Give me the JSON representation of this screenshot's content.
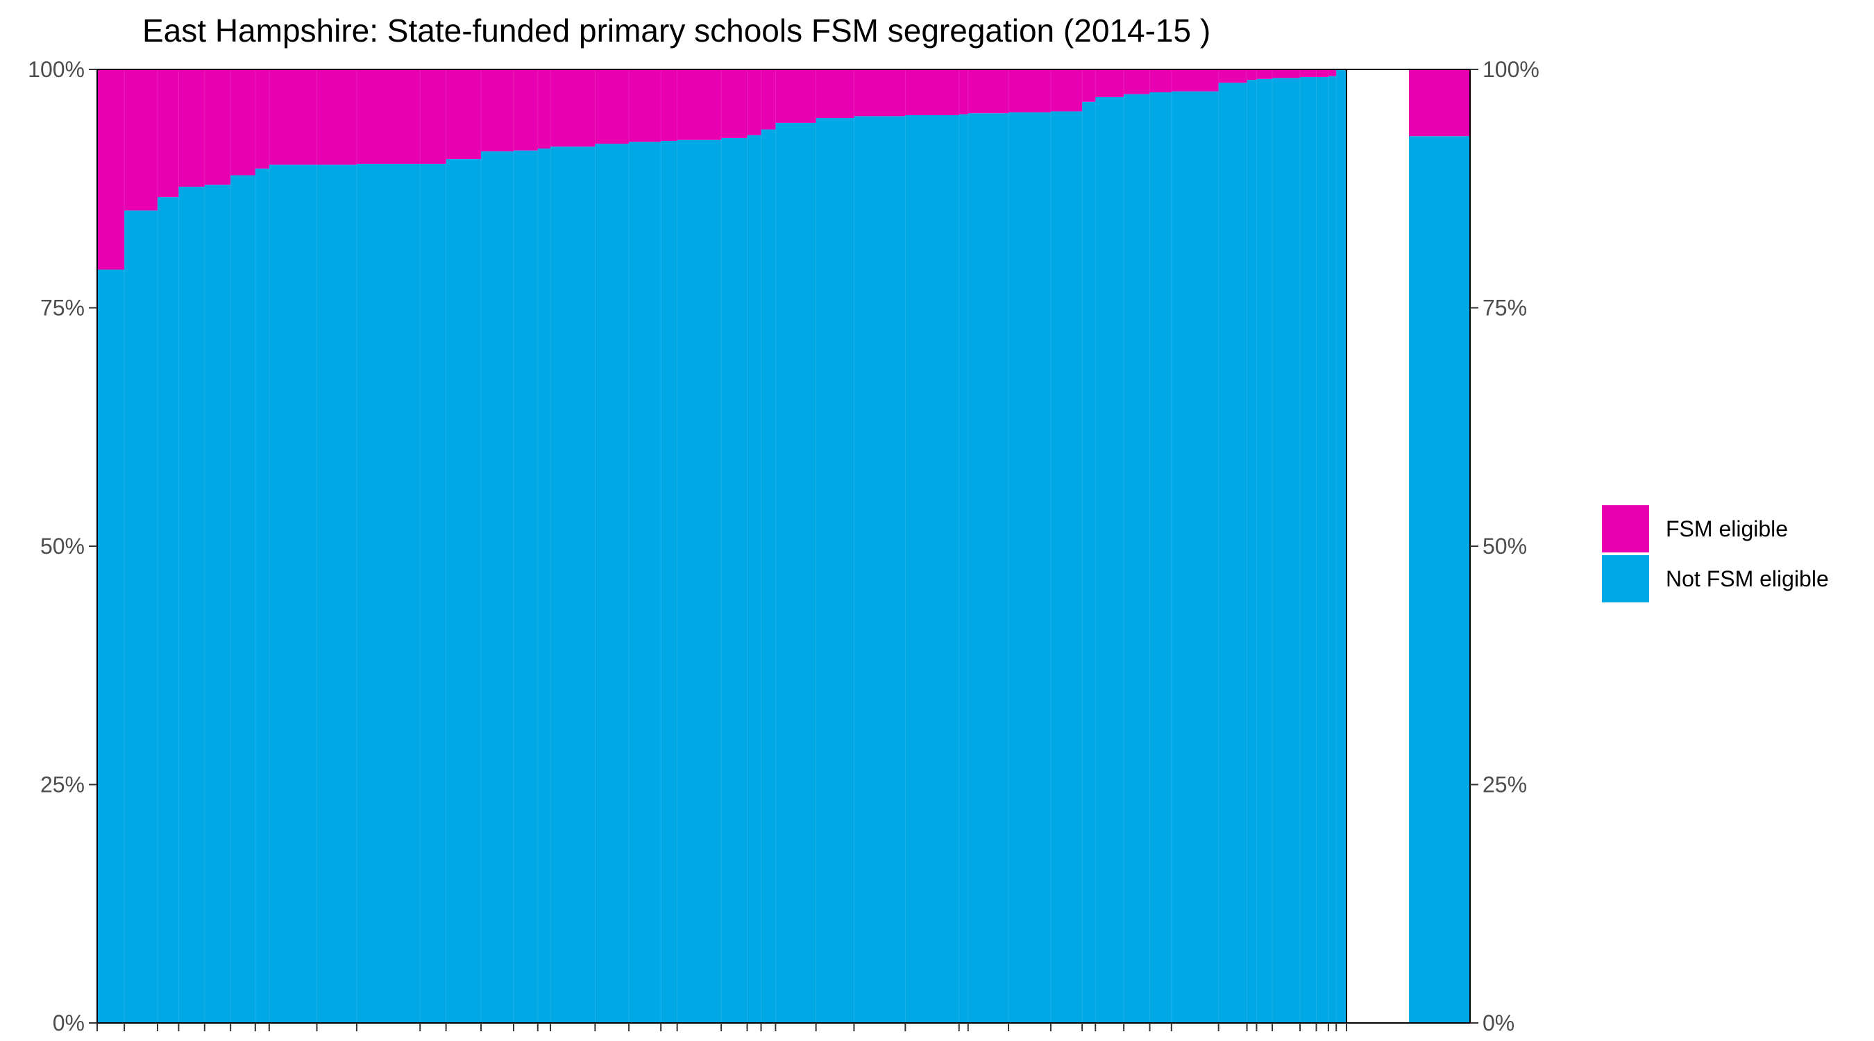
{
  "chart_data": {
    "type": "bar",
    "stacked": true,
    "variable_width": true,
    "title": "East Hampshire: State-funded primary schools FSM segregation (2014-15 )",
    "xlabel": "",
    "ylabel": "",
    "ylim": [
      0,
      1
    ],
    "yticks": [
      "0%",
      "25%",
      "50%",
      "75%",
      "100%"
    ],
    "yticks_right": [
      "0%",
      "25%",
      "50%",
      "75%",
      "100%"
    ],
    "grid": false,
    "legend": {
      "position": "right",
      "entries": [
        "FSM eligible",
        "Not FSM eligible"
      ]
    },
    "colors": {
      "fsm": "#e800b0",
      "not_fsm": "#00a8e6"
    },
    "schools": {
      "widths": [
        45,
        55,
        35,
        43,
        43,
        41,
        23,
        79,
        66,
        105,
        43,
        58,
        54,
        40,
        21,
        74,
        56,
        53,
        27,
        73,
        43,
        23,
        24,
        67,
        63,
        85,
        89,
        15,
        67,
        70,
        52,
        22,
        47,
        43,
        36,
        78,
        47,
        16,
        26,
        46,
        27,
        20,
        13,
        17
      ],
      "not_fsm_share": [
        0.79,
        0.852,
        0.866,
        0.877,
        0.879,
        0.889,
        0.896,
        0.9,
        0.9,
        0.901,
        0.901,
        0.906,
        0.914,
        0.915,
        0.917,
        0.919,
        0.922,
        0.924,
        0.925,
        0.926,
        0.928,
        0.931,
        0.937,
        0.944,
        0.949,
        0.951,
        0.952,
        0.953,
        0.954,
        0.955,
        0.956,
        0.966,
        0.971,
        0.974,
        0.976,
        0.977,
        0.986,
        0.989,
        0.99,
        0.991,
        0.992,
        0.992,
        0.993,
        1.0
      ]
    },
    "overall": {
      "not_fsm_share": 0.93
    }
  }
}
